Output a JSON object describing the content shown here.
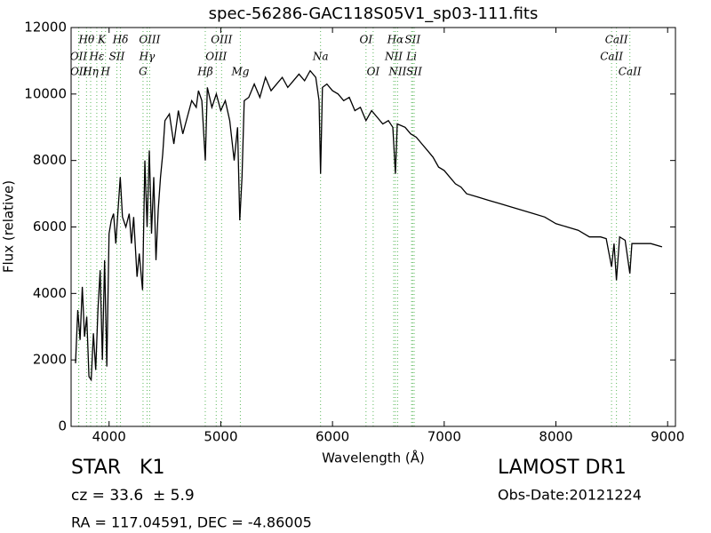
{
  "chart_data": {
    "type": "line",
    "title": "spec-56286-GAC118S05V1_sp03-111.fits",
    "x_label": "Wavelength (Å)",
    "y_label": "Flux (relative)",
    "xlim": [
      3660,
      9070
    ],
    "ylim": [
      0,
      12000
    ],
    "xticks": [
      4000,
      5000,
      6000,
      7000,
      8000,
      9000
    ],
    "yticks": [
      0,
      2000,
      4000,
      6000,
      8000,
      10000,
      12000
    ],
    "series": [
      {
        "name": "spectrum",
        "color": "#000000",
        "x": [
          3700,
          3720,
          3740,
          3760,
          3780,
          3800,
          3820,
          3840,
          3860,
          3880,
          3900,
          3920,
          3940,
          3960,
          3980,
          4000,
          4020,
          4040,
          4060,
          4080,
          4100,
          4120,
          4150,
          4180,
          4200,
          4220,
          4250,
          4270,
          4300,
          4320,
          4340,
          4360,
          4380,
          4400,
          4420,
          4440,
          4460,
          4480,
          4500,
          4540,
          4580,
          4620,
          4660,
          4700,
          4740,
          4780,
          4800,
          4830,
          4861,
          4880,
          4920,
          4960,
          5000,
          5040,
          5080,
          5120,
          5150,
          5170,
          5190,
          5210,
          5250,
          5300,
          5350,
          5400,
          5450,
          5500,
          5550,
          5600,
          5650,
          5700,
          5750,
          5800,
          5850,
          5880,
          5893,
          5910,
          5950,
          6000,
          6050,
          6100,
          6150,
          6200,
          6250,
          6300,
          6350,
          6400,
          6450,
          6500,
          6540,
          6563,
          6580,
          6650,
          6700,
          6750,
          6800,
          6850,
          6900,
          6950,
          7000,
          7050,
          7100,
          7150,
          7200,
          7300,
          7400,
          7500,
          7600,
          7700,
          7800,
          7900,
          8000,
          8100,
          8200,
          8300,
          8400,
          8450,
          8498,
          8520,
          8542,
          8570,
          8620,
          8662,
          8680,
          8750,
          8850,
          8950
        ],
        "values": [
          1900,
          3500,
          2600,
          4200,
          2700,
          3300,
          1500,
          1400,
          2800,
          1700,
          3500,
          4700,
          2000,
          5000,
          1800,
          5800,
          6200,
          6400,
          5500,
          6500,
          7500,
          6300,
          6000,
          6400,
          5500,
          6300,
          4500,
          5200,
          4100,
          8000,
          6000,
          8300,
          5800,
          7500,
          5000,
          6500,
          7500,
          8200,
          9200,
          9400,
          8500,
          9500,
          8800,
          9300,
          9800,
          9600,
          10100,
          9800,
          8000,
          10200,
          9600,
          10000,
          9500,
          9800,
          9200,
          8000,
          9000,
          6200,
          7500,
          9800,
          9900,
          10300,
          9900,
          10500,
          10100,
          10300,
          10500,
          10200,
          10400,
          10600,
          10400,
          10700,
          10500,
          9800,
          7600,
          10200,
          10300,
          10100,
          10000,
          9800,
          9900,
          9500,
          9600,
          9200,
          9500,
          9300,
          9100,
          9200,
          9000,
          7600,
          9100,
          9000,
          8800,
          8700,
          8500,
          8300,
          8100,
          7800,
          7700,
          7500,
          7300,
          7200,
          7000,
          6900,
          6800,
          6700,
          6600,
          6500,
          6400,
          6300,
          6100,
          6000,
          5900,
          5700,
          5700,
          5650,
          4800,
          5500,
          4400,
          5700,
          5600,
          4600,
          5500,
          5500,
          5500,
          5400
        ]
      }
    ],
    "line_marks": [
      [
        {
          "label": "Hθ",
          "x": 3798
        },
        {
          "label": "K",
          "x": 3934
        },
        {
          "label": "Hδ",
          "x": 4102
        },
        {
          "label": "OIII",
          "x": 4363
        },
        {
          "label": "OIII",
          "x": 5007
        },
        {
          "label": "OI",
          "x": 6300
        },
        {
          "label": "Hα",
          "x": 6563
        },
        {
          "label": "SII",
          "x": 6717
        },
        {
          "label": "CaII",
          "x": 8542
        }
      ],
      [
        {
          "label": "OII",
          "x": 3727
        },
        {
          "label": "Hε",
          "x": 3890
        },
        {
          "label": "SII",
          "x": 4070
        },
        {
          "label": "Hγ",
          "x": 4340
        },
        {
          "label": "OIII",
          "x": 4959
        },
        {
          "label": "Na",
          "x": 5893
        },
        {
          "label": "NII",
          "x": 6548
        },
        {
          "label": "Li",
          "x": 6708
        },
        {
          "label": "CaII",
          "x": 8498
        }
      ],
      [
        {
          "label": "OII",
          "x": 3729
        },
        {
          "label": "Hη",
          "x": 3835
        },
        {
          "label": "H",
          "x": 3968
        },
        {
          "label": "G",
          "x": 4304
        },
        {
          "label": "Hβ",
          "x": 4861
        },
        {
          "label": "Mg",
          "x": 5175
        },
        {
          "label": "OI",
          "x": 6364
        },
        {
          "label": "NII",
          "x": 6583
        },
        {
          "label": "SII",
          "x": 6731
        },
        {
          "label": "CaII",
          "x": 8662
        }
      ]
    ]
  },
  "footer": {
    "object": "STAR   K1",
    "redshift": "cz = 33.6  ± 5.9",
    "coords": "RA = 117.04591, DEC = -4.86005",
    "survey": "LAMOST DR1",
    "obs_date": "Obs-Date:20121224"
  }
}
